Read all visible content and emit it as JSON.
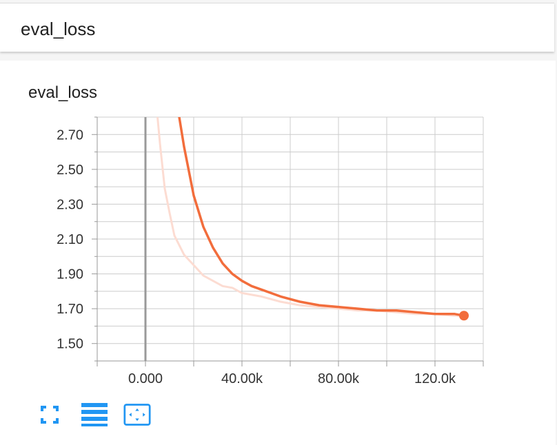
{
  "header": {
    "title": "eval_loss"
  },
  "card": {
    "title": "eval_loss"
  },
  "toolbar": {
    "buttons": [
      {
        "name": "toggle-expand-button",
        "icon": "expand-icon"
      },
      {
        "name": "toggle-log-scale-button",
        "icon": "lines-icon"
      },
      {
        "name": "fit-domain-button",
        "icon": "fit-domain-icon"
      }
    ]
  },
  "colors": {
    "accent": "#2196f3",
    "series_smoothed": "#f26d3c",
    "series_raw": "#fcdcd2",
    "grid": "#cccccc",
    "axis": "#999999"
  },
  "chart_data": {
    "type": "line",
    "title": "eval_loss",
    "xlabel": "",
    "ylabel": "",
    "xlim": [
      -20000,
      140000
    ],
    "ylim": [
      1.4,
      2.8
    ],
    "x_ticks": [
      0,
      40000,
      80000,
      120000
    ],
    "x_tick_labels": [
      "0.000",
      "40.00k",
      "80.00k",
      "120.0k"
    ],
    "y_ticks": [
      1.5,
      1.7,
      1.9,
      2.1,
      2.3,
      2.5,
      2.7
    ],
    "y_tick_labels": [
      "1.50",
      "1.70",
      "1.90",
      "2.10",
      "2.30",
      "2.50",
      "2.70"
    ],
    "grid": true,
    "series": [
      {
        "role": "raw",
        "x": [
          5000,
          6000,
          8000,
          10000,
          12000,
          16000,
          20000,
          24000,
          28000,
          32000,
          36000,
          40000,
          48000,
          56000,
          64000,
          72000,
          80000,
          88000,
          96000,
          104000,
          112000,
          120000,
          128000,
          132000
        ],
        "y": [
          2.8,
          2.65,
          2.39,
          2.25,
          2.12,
          2.01,
          1.95,
          1.89,
          1.86,
          1.83,
          1.82,
          1.79,
          1.77,
          1.74,
          1.72,
          1.71,
          1.7,
          1.69,
          1.69,
          1.68,
          1.67,
          1.67,
          1.66,
          1.66
        ]
      },
      {
        "role": "smoothed",
        "x": [
          14000,
          16000,
          20000,
          24000,
          28000,
          32000,
          36000,
          40000,
          44000,
          48000,
          56000,
          64000,
          72000,
          80000,
          88000,
          96000,
          104000,
          112000,
          120000,
          128000,
          132000
        ],
        "y": [
          2.8,
          2.63,
          2.35,
          2.17,
          2.05,
          1.96,
          1.9,
          1.86,
          1.83,
          1.81,
          1.77,
          1.74,
          1.72,
          1.71,
          1.7,
          1.69,
          1.69,
          1.68,
          1.67,
          1.67,
          1.66
        ]
      }
    ],
    "last_point": {
      "x": 132000,
      "y": 1.66
    }
  }
}
